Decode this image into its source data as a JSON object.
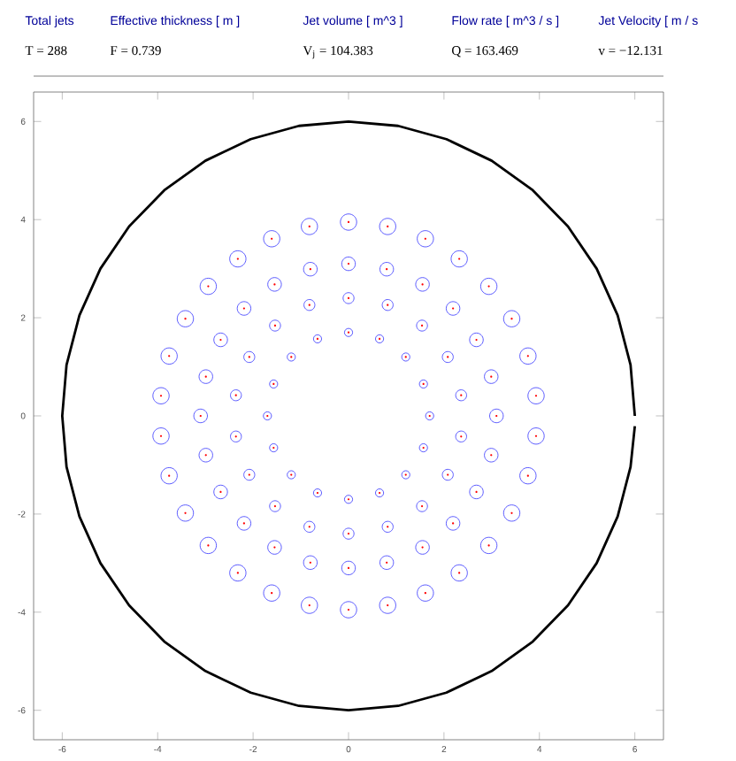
{
  "chart_data": {
    "type": "bubble",
    "annotations": [
      "Total jets",
      "Effective thickness [ m ]",
      "Jet volume [ m^3 ]",
      "Flow rate [ m^3 / s ]",
      "Jet Velocity [ m / s",
      "T = 288",
      "F = 0.739",
      "V$_{j}$ = 104.383",
      "Q = 163.469",
      "v = −12.131"
    ],
    "xlim": [
      -6.6,
      6.6
    ],
    "ylim": [
      -6.6,
      6.6
    ],
    "xticks": [
      -6,
      -4,
      -2,
      0,
      2,
      4,
      6
    ],
    "yticks": [
      -6,
      -4,
      -2,
      0,
      2,
      4,
      6
    ],
    "series": [
      {
        "color": "#3333ff",
        "x": [
          1.7,
          1.57,
          1.2,
          0.65,
          0,
          -0.65,
          -1.2,
          -1.57,
          -1.7,
          -1.57,
          -1.2,
          -0.65,
          0,
          0.65,
          1.2,
          1.57,
          2.36,
          2.08,
          1.54,
          0.82,
          0,
          -0.82,
          -1.54,
          -2.08,
          -2.36,
          -2.36,
          -2.08,
          -1.54,
          -0.82,
          0,
          0.82,
          1.54,
          2.08,
          2.36,
          3.1,
          2.99,
          2.68,
          2.19,
          1.55,
          0.8,
          0,
          -0.8,
          -1.55,
          -2.19,
          -2.68,
          -2.99,
          -3.1,
          -2.99,
          -2.68,
          -2.19,
          -1.55,
          -0.8,
          0,
          0.8,
          1.55,
          2.19,
          2.68,
          2.99,
          3.93,
          3.76,
          3.42,
          2.94,
          2.32,
          1.61,
          0.82,
          0,
          -0.82,
          -1.61,
          -2.32,
          -2.94,
          -3.42,
          -3.76,
          -3.93,
          -3.93,
          -3.76,
          -3.42,
          -2.94,
          -2.32,
          -1.61,
          -0.82,
          0,
          0.82,
          1.61,
          2.32,
          2.94,
          3.42,
          3.76,
          3.93
        ],
        "values": [
          0,
          0.65,
          1.2,
          1.57,
          1.7,
          1.57,
          1.2,
          0.65,
          0,
          -0.65,
          -1.2,
          -1.57,
          -1.7,
          -1.57,
          -1.2,
          -0.65,
          0.42,
          1.2,
          1.84,
          2.26,
          2.4,
          2.26,
          1.84,
          1.2,
          0.42,
          -0.42,
          -1.2,
          -1.84,
          -2.26,
          -2.4,
          -2.26,
          -1.84,
          -1.2,
          -0.42,
          0,
          0.8,
          1.55,
          2.19,
          2.68,
          2.99,
          3.1,
          2.99,
          2.68,
          2.19,
          1.55,
          0.8,
          0,
          -0.8,
          -1.55,
          -2.19,
          -2.68,
          -2.99,
          -3.1,
          -2.99,
          -2.68,
          -2.19,
          -1.55,
          -0.8,
          0.41,
          1.22,
          1.98,
          2.64,
          3.2,
          3.61,
          3.86,
          3.95,
          3.86,
          3.61,
          3.2,
          2.64,
          1.98,
          1.22,
          0.41,
          -0.41,
          -1.22,
          -1.98,
          -2.64,
          -3.2,
          -3.61,
          -3.86,
          -3.95,
          -3.86,
          -3.61,
          -3.2,
          -2.64,
          -1.98,
          -1.22,
          -0.41
        ],
        "sizes": [
          0.25,
          0.25,
          0.25,
          0.25,
          0.25,
          0.25,
          0.25,
          0.25,
          0.25,
          0.25,
          0.25,
          0.25,
          0.25,
          0.25,
          0.25,
          0.25,
          0.45,
          0.45,
          0.45,
          0.45,
          0.45,
          0.45,
          0.45,
          0.45,
          0.45,
          0.45,
          0.45,
          0.45,
          0.45,
          0.45,
          0.45,
          0.45,
          0.45,
          0.45,
          0.7,
          0.7,
          0.7,
          0.7,
          0.7,
          0.7,
          0.7,
          0.7,
          0.7,
          0.7,
          0.7,
          0.7,
          0.7,
          0.7,
          0.7,
          0.7,
          0.7,
          0.7,
          0.7,
          0.7,
          0.7,
          0.7,
          0.7,
          0.7,
          1,
          1,
          1,
          1,
          1,
          1,
          1,
          1,
          1,
          1,
          1,
          1,
          1,
          1,
          1,
          1,
          1,
          1,
          1,
          1,
          1,
          1,
          1,
          1,
          1,
          1,
          1,
          1,
          1,
          1
        ]
      },
      {
        "type": "line",
        "color": "#000000",
        "x": [
          6,
          5.91,
          5.64,
          5.2,
          4.6,
          3.86,
          3,
          2.05,
          1.04,
          0,
          -1.04,
          -2.05,
          -3,
          -3.86,
          -4.6,
          -5.2,
          -5.64,
          -5.91,
          -6,
          -5.91,
          -5.64,
          -5.2,
          -4.6,
          -3.86,
          -3,
          -2.05,
          -1.04,
          0,
          1.04,
          2.05,
          3,
          3.86,
          4.6,
          5.2,
          5.64,
          5.91,
          6
        ],
        "values": [
          0,
          1.04,
          2.05,
          3,
          3.86,
          4.6,
          5.2,
          5.64,
          5.91,
          6,
          5.91,
          5.64,
          5.2,
          4.6,
          3.86,
          3,
          2.05,
          1.04,
          0,
          -1.04,
          -2.05,
          -3,
          -3.86,
          -4.6,
          -5.2,
          -5.64,
          -5.91,
          -6,
          -5.91,
          -5.64,
          -5.2,
          -4.6,
          -3.86,
          -3,
          -2.05,
          -1.04,
          -0.21
        ]
      }
    ]
  }
}
